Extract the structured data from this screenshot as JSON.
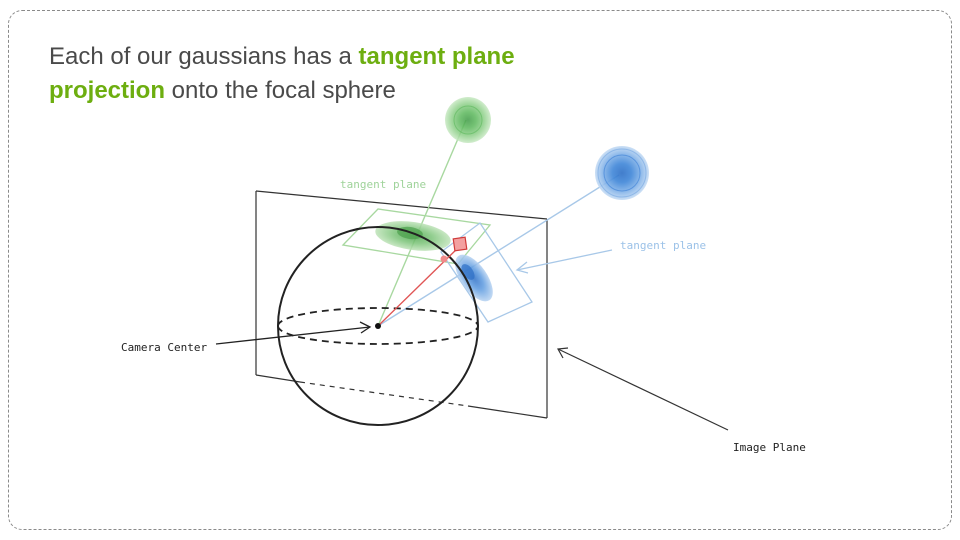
{
  "slide": {
    "headline": {
      "before": "Each of our gaussians has a ",
      "highlight": "tangent plane projection",
      "after": " onto the focal sphere"
    }
  },
  "diagram": {
    "labels": {
      "tangent_plane_green": "tangent plane",
      "tangent_plane_blue": "tangent plane",
      "camera_center": "Camera Center",
      "image_plane": "Image Plane"
    },
    "colors": {
      "highlight": "#6dae10",
      "green_gaussian": "#5cb85c",
      "blue_gaussian": "#3a7fd5",
      "ray_red": "#e05555",
      "green_line": "#a8d8a0",
      "blue_line": "#a8c8e8"
    }
  }
}
